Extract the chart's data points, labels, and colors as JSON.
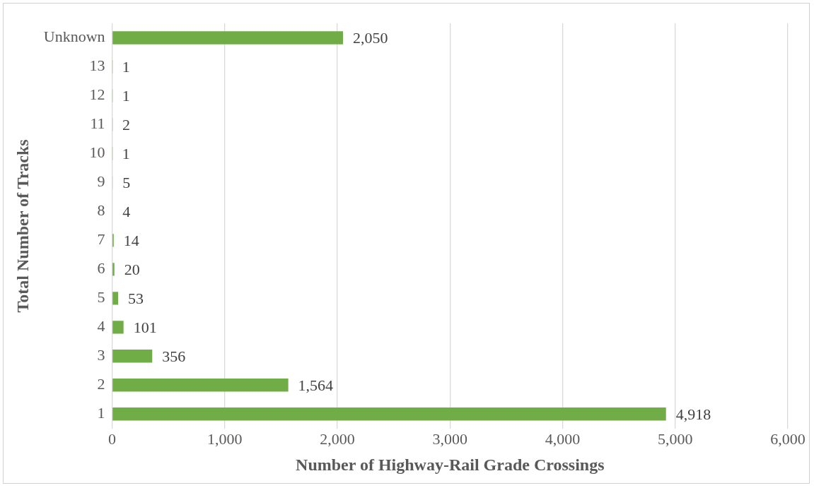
{
  "chart_data": {
    "type": "bar",
    "orientation": "horizontal",
    "xlabel": "Number of Highway-Rail Grade Crossings",
    "ylabel": "Total Number of Tracks",
    "categories": [
      "Unknown",
      "13",
      "12",
      "11",
      "10",
      "9",
      "8",
      "7",
      "6",
      "5",
      "4",
      "3",
      "2",
      "1"
    ],
    "values": [
      2050,
      1,
      1,
      2,
      1,
      5,
      4,
      14,
      20,
      53,
      101,
      356,
      1564,
      4918
    ],
    "value_labels": [
      "2,050",
      "1",
      "1",
      "2",
      "1",
      "5",
      "4",
      "14",
      "20",
      "53",
      "101",
      "356",
      "1,564",
      "4,918"
    ],
    "color": "#70ad47",
    "xlim": [
      0,
      6000
    ],
    "xticks": [
      0,
      {
        "value": 1000,
        "label": "1,000"
      },
      {
        "value": 2000,
        "label": "2,000"
      },
      {
        "value": 3000,
        "label": "3,000"
      },
      {
        "value": 4000,
        "label": "4,000"
      },
      {
        "value": 5000,
        "label": "5,000"
      },
      {
        "value": 6000,
        "label": "6,000"
      }
    ],
    "grid": "x",
    "legend": false
  }
}
